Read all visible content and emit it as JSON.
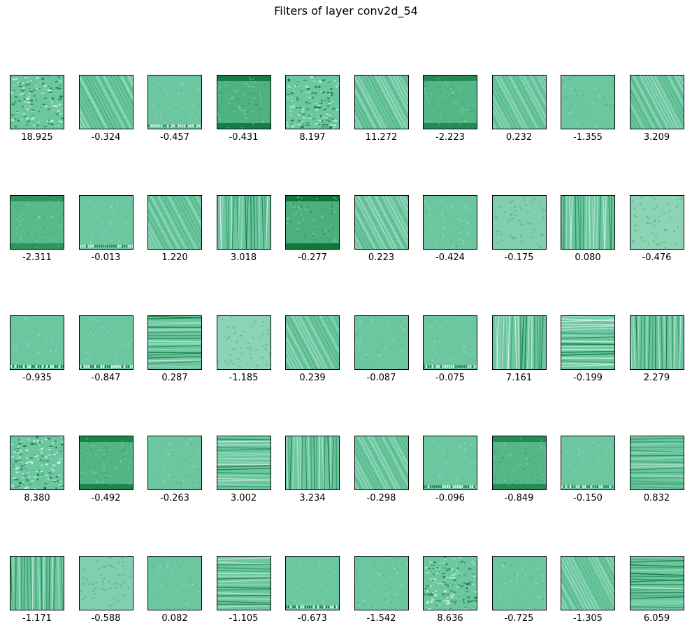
{
  "title": "Filters of layer conv2d_54",
  "palette": {
    "base": "#6cc7a1",
    "dark": "#00692b",
    "mid": "#2c9a5a",
    "light": "#e8f6f0"
  },
  "filters": [
    {
      "value": "18.925",
      "pattern": "speckle",
      "intensity": 0.7
    },
    {
      "value": "-0.324",
      "pattern": "diag",
      "intensity": 0.8
    },
    {
      "value": "-0.457",
      "pattern": "flat-bottom",
      "intensity": 0.3
    },
    {
      "value": "-0.431",
      "pattern": "dark-edge",
      "intensity": 0.9
    },
    {
      "value": "8.197",
      "pattern": "speckle",
      "intensity": 0.8
    },
    {
      "value": "11.272",
      "pattern": "diag",
      "intensity": 0.6
    },
    {
      "value": "-2.223",
      "pattern": "dark-edge",
      "intensity": 0.7
    },
    {
      "value": "0.232",
      "pattern": "diag",
      "intensity": 0.3
    },
    {
      "value": "-1.355",
      "pattern": "flat",
      "intensity": 0.5
    },
    {
      "value": "3.209",
      "pattern": "diag",
      "intensity": 0.6
    },
    {
      "value": "-2.311",
      "pattern": "dark-edge",
      "intensity": 0.6
    },
    {
      "value": "-0.013",
      "pattern": "flat-bottom",
      "intensity": 0.3
    },
    {
      "value": "1.220",
      "pattern": "diag",
      "intensity": 0.5
    },
    {
      "value": "3.018",
      "pattern": "vert",
      "intensity": 0.8
    },
    {
      "value": "-0.277",
      "pattern": "dark-edge",
      "intensity": 1.0
    },
    {
      "value": "0.223",
      "pattern": "diag",
      "intensity": 0.6
    },
    {
      "value": "-0.424",
      "pattern": "flat",
      "intensity": 0.4
    },
    {
      "value": "-0.175",
      "pattern": "light",
      "intensity": 0.4
    },
    {
      "value": "0.080",
      "pattern": "vert",
      "intensity": 0.7
    },
    {
      "value": "-0.476",
      "pattern": "light",
      "intensity": 0.6
    },
    {
      "value": "-0.935",
      "pattern": "flat-bottom",
      "intensity": 0.5
    },
    {
      "value": "-0.847",
      "pattern": "flat-bottom",
      "intensity": 0.4
    },
    {
      "value": "0.287",
      "pattern": "horiz",
      "intensity": 0.8
    },
    {
      "value": "-1.185",
      "pattern": "light",
      "intensity": 0.6
    },
    {
      "value": "0.239",
      "pattern": "diag",
      "intensity": 0.5
    },
    {
      "value": "-0.087",
      "pattern": "flat",
      "intensity": 0.3
    },
    {
      "value": "-0.075",
      "pattern": "flat-bottom",
      "intensity": 0.2
    },
    {
      "value": "7.161",
      "pattern": "vert",
      "intensity": 0.9
    },
    {
      "value": "-0.199",
      "pattern": "horiz",
      "intensity": 0.9
    },
    {
      "value": "2.279",
      "pattern": "vert",
      "intensity": 0.7
    },
    {
      "value": "8.380",
      "pattern": "speckle",
      "intensity": 0.9
    },
    {
      "value": "-0.492",
      "pattern": "dark-edge",
      "intensity": 0.8
    },
    {
      "value": "-0.263",
      "pattern": "flat",
      "intensity": 0.4
    },
    {
      "value": "3.002",
      "pattern": "horiz",
      "intensity": 0.8
    },
    {
      "value": "3.234",
      "pattern": "vert",
      "intensity": 0.8
    },
    {
      "value": "-0.298",
      "pattern": "diag",
      "intensity": 0.4
    },
    {
      "value": "-0.096",
      "pattern": "flat-bottom",
      "intensity": 0.3
    },
    {
      "value": "-0.849",
      "pattern": "dark-edge",
      "intensity": 0.7
    },
    {
      "value": "-0.150",
      "pattern": "flat-bottom",
      "intensity": 0.2
    },
    {
      "value": "0.832",
      "pattern": "horiz",
      "intensity": 0.4
    },
    {
      "value": "-1.171",
      "pattern": "vert",
      "intensity": 0.6
    },
    {
      "value": "-0.588",
      "pattern": "light",
      "intensity": 0.4
    },
    {
      "value": "0.082",
      "pattern": "flat",
      "intensity": 0.2
    },
    {
      "value": "-1.105",
      "pattern": "horiz",
      "intensity": 0.7
    },
    {
      "value": "-0.673",
      "pattern": "flat-bottom",
      "intensity": 0.6
    },
    {
      "value": "-1.542",
      "pattern": "flat",
      "intensity": 0.5
    },
    {
      "value": "8.636",
      "pattern": "speckle",
      "intensity": 0.7
    },
    {
      "value": "-0.725",
      "pattern": "flat",
      "intensity": 0.3
    },
    {
      "value": "-1.305",
      "pattern": "diag",
      "intensity": 0.4
    },
    {
      "value": "6.059",
      "pattern": "horiz",
      "intensity": 0.9
    }
  ]
}
